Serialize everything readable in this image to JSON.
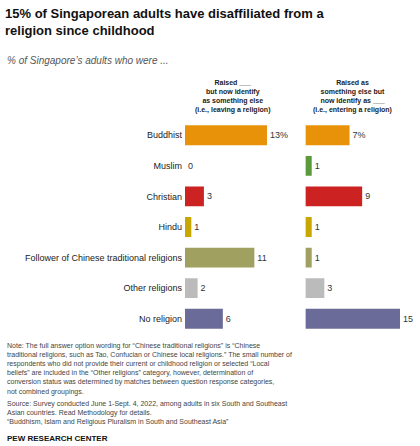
{
  "chart_data": {
    "type": "bar",
    "orientation": "horizontal",
    "title": "15% of Singaporean adults have disaffiliated from a\nreligion since childhood",
    "subtitle": "% of Singapore’s adults who were ...",
    "categories": [
      "Buddhist",
      "Muslim",
      "Christian",
      "Hindu",
      "Follower of Chinese traditional religions",
      "Other religions",
      "No religion"
    ],
    "series": [
      {
        "name": "Raised ___\nbut now identify\nas something else\n(i.e., leaving a religion)",
        "values": [
          13,
          0,
          3,
          1,
          11,
          2,
          6
        ],
        "value_labels": [
          "13%",
          "0",
          "3",
          "1",
          "11",
          "2",
          "6"
        ],
        "colors": [
          "#E8920A",
          "#FFFFFF",
          "#CC2222",
          "#C8A800",
          "#A0A060",
          "#BBBBBB",
          "#6B6B99"
        ]
      },
      {
        "name": "Raised as\nsomething else but\nnow identify as ___\n(i.e., entering a religion)",
        "values": [
          7,
          1,
          9,
          1,
          1,
          3,
          15
        ],
        "value_labels": [
          "7%",
          "1",
          "9",
          "1",
          "1",
          "3",
          "15"
        ],
        "colors": [
          "#E8920A",
          "#5A9A3A",
          "#CC2222",
          "#C8A800",
          "#A0A060",
          "#BBBBBB",
          "#6B6B99"
        ]
      }
    ],
    "xlim": [
      0,
      15
    ],
    "data_labels": true,
    "tick_labels": "y",
    "grid": false,
    "annotations": [
      "Note: The full answer option wording for “Chinese traditional religions” is “Chinese\ntraditional religions, such as Tao, Confucian or Chinese local religions.” The small number of\nrespondents who did not provide their current or childhood religion or selected “Local\nbeliefs” are included in the “Other religions” category, however, determination of\nconversion status was determined by matches between question response categories,\nnot combined groupings.",
      "Source: Survey conducted June 1-Sept. 4, 2022, among adults in six South and Southeast\nAsian countries. Read Methodology for details.\n“Buddhism, Islam and Religious Pluralism in South and Southeast Asia”",
      "PEW RESEARCH CENTER"
    ]
  }
}
